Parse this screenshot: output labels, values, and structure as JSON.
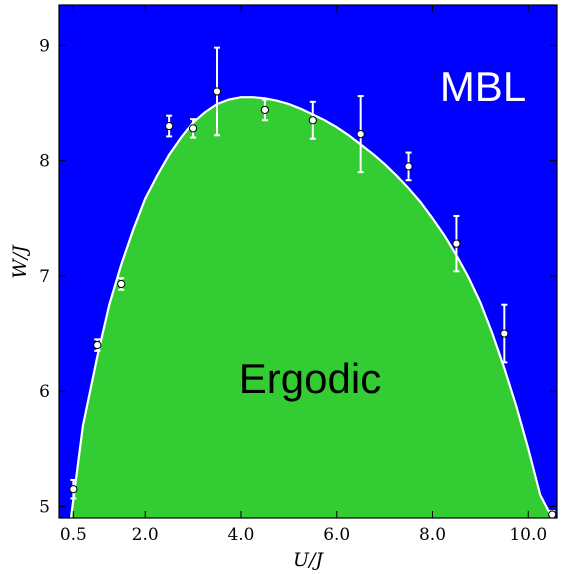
{
  "chart_data": {
    "type": "scatter",
    "title": "",
    "xlabel": "U/J",
    "ylabel": "W/J",
    "xlim": [
      0.2,
      10.6
    ],
    "ylim": [
      4.9,
      9.35
    ],
    "x_ticks": [
      0.5,
      2.0,
      4.0,
      6.0,
      8.0,
      10.0
    ],
    "x_tick_labels": [
      "0.5",
      "2.0",
      "4.0",
      "6.0",
      "8.0",
      "10.0"
    ],
    "y_ticks": [
      5,
      6,
      7,
      8,
      9
    ],
    "y_tick_labels": [
      "5",
      "6",
      "7",
      "8",
      "9"
    ],
    "grid": false,
    "colors": {
      "mbl_region": "#0000ff",
      "ergodic_region": "#33cc33",
      "boundary": "#ffffff",
      "points": "#ffffff"
    },
    "regions": [
      {
        "label": "MBL"
      },
      {
        "label": "Ergodic"
      }
    ],
    "series": [
      {
        "x": [
          0.5,
          1.0,
          1.5,
          2.5,
          3.0,
          3.5,
          4.5,
          5.5,
          6.5,
          7.5,
          8.5,
          9.5,
          10.5
        ],
        "y": [
          5.15,
          6.4,
          6.93,
          8.3,
          8.28,
          8.6,
          8.44,
          8.35,
          8.23,
          7.95,
          7.28,
          6.5,
          4.93
        ],
        "yerr": [
          0.08,
          0.05,
          0.05,
          0.09,
          0.08,
          0.38,
          0.09,
          0.16,
          0.33,
          0.12,
          0.24,
          0.25,
          0.03
        ]
      }
    ],
    "boundary_curve": {
      "x": [
        0.45,
        0.7,
        1.0,
        1.25,
        1.5,
        1.75,
        2.0,
        2.25,
        2.5,
        2.75,
        3.0,
        3.25,
        3.5,
        3.75,
        4.0,
        4.25,
        4.5,
        4.75,
        5.0,
        5.25,
        5.5,
        5.75,
        6.0,
        6.25,
        6.5,
        6.75,
        7.0,
        7.25,
        7.5,
        7.75,
        8.0,
        8.25,
        8.5,
        8.75,
        9.0,
        9.25,
        9.5,
        9.75,
        10.0,
        10.25,
        10.5
      ],
      "y": [
        4.9,
        5.7,
        6.3,
        6.75,
        7.1,
        7.4,
        7.67,
        7.87,
        8.05,
        8.2,
        8.33,
        8.42,
        8.49,
        8.53,
        8.55,
        8.55,
        8.54,
        8.52,
        8.49,
        8.45,
        8.4,
        8.35,
        8.29,
        8.22,
        8.14,
        8.06,
        7.97,
        7.87,
        7.76,
        7.64,
        7.5,
        7.35,
        7.18,
        6.99,
        6.77,
        6.5,
        6.2,
        5.87,
        5.5,
        5.1,
        4.9
      ]
    }
  }
}
